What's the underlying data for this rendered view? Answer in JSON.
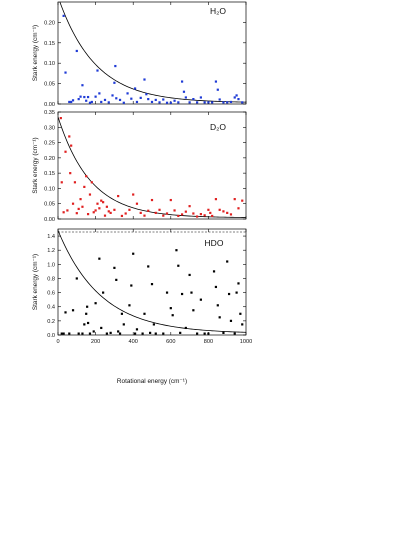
{
  "chart_data": [
    {
      "type": "scatter",
      "label": "H₂O",
      "ylabel": "Stark energy (cm⁻¹)",
      "xlim": [
        0,
        1000
      ],
      "ylim": [
        0,
        0.25
      ],
      "yticks": [
        "0.00",
        "0.05",
        "0.10",
        "0.15",
        "0.20"
      ],
      "color": "#1f3bd6",
      "fit": {
        "a": 0.26,
        "b": 0.0051,
        "offset": 0.003
      },
      "points": [
        [
          30,
          0.216
        ],
        [
          40,
          0.077
        ],
        [
          60,
          0.005
        ],
        [
          70,
          0.005
        ],
        [
          80,
          0.009
        ],
        [
          100,
          0.13
        ],
        [
          110,
          0.012
        ],
        [
          120,
          0.018
        ],
        [
          130,
          0.046
        ],
        [
          140,
          0.017
        ],
        [
          150,
          0.008
        ],
        [
          160,
          0.017
        ],
        [
          170,
          0.003
        ],
        [
          180,
          0.005
        ],
        [
          200,
          0.018
        ],
        [
          210,
          0.082
        ],
        [
          220,
          0.026
        ],
        [
          230,
          0.005
        ],
        [
          250,
          0.01
        ],
        [
          270,
          0.004
        ],
        [
          290,
          0.021
        ],
        [
          300,
          0.052
        ],
        [
          305,
          0.093
        ],
        [
          310,
          0.014
        ],
        [
          330,
          0.01
        ],
        [
          350,
          0.003
        ],
        [
          370,
          0.026
        ],
        [
          390,
          0.013
        ],
        [
          410,
          0.038
        ],
        [
          420,
          0.005
        ],
        [
          440,
          0.015
        ],
        [
          460,
          0.06
        ],
        [
          470,
          0.024
        ],
        [
          480,
          0.012
        ],
        [
          500,
          0.005
        ],
        [
          520,
          0.01
        ],
        [
          540,
          0.004
        ],
        [
          560,
          0.011
        ],
        [
          580,
          0.003
        ],
        [
          600,
          0.003
        ],
        [
          620,
          0.008
        ],
        [
          640,
          0.004
        ],
        [
          660,
          0.055
        ],
        [
          670,
          0.03
        ],
        [
          680,
          0.016
        ],
        [
          700,
          0.004
        ],
        [
          720,
          0.012
        ],
        [
          740,
          0.004
        ],
        [
          760,
          0.016
        ],
        [
          780,
          0.004
        ],
        [
          800,
          0.004
        ],
        [
          820,
          0.004
        ],
        [
          840,
          0.055
        ],
        [
          850,
          0.035
        ],
        [
          860,
          0.011
        ],
        [
          880,
          0.004
        ],
        [
          900,
          0.004
        ],
        [
          920,
          0.005
        ],
        [
          940,
          0.016
        ],
        [
          950,
          0.021
        ],
        [
          960,
          0.012
        ],
        [
          980,
          0.004
        ]
      ]
    },
    {
      "type": "scatter",
      "label": "D₂O",
      "ylabel": "Stark energy (cm⁻¹)",
      "xlim": [
        0,
        1000
      ],
      "ylim": [
        0,
        0.35
      ],
      "yticks": [
        "0.00",
        "0.05",
        "0.10",
        "0.15",
        "0.20",
        "0.25",
        "0.30",
        "0.35"
      ],
      "color": "#e02020",
      "fit": {
        "a": 0.33,
        "b": 0.0058,
        "offset": 0.004
      },
      "points": [
        [
          15,
          0.33
        ],
        [
          20,
          0.12
        ],
        [
          30,
          0.022
        ],
        [
          40,
          0.22
        ],
        [
          50,
          0.028
        ],
        [
          60,
          0.27
        ],
        [
          65,
          0.15
        ],
        [
          70,
          0.24
        ],
        [
          80,
          0.05
        ],
        [
          90,
          0.12
        ],
        [
          100,
          0.019
        ],
        [
          110,
          0.033
        ],
        [
          120,
          0.065
        ],
        [
          130,
          0.04
        ],
        [
          140,
          0.105
        ],
        [
          150,
          0.14
        ],
        [
          160,
          0.016
        ],
        [
          170,
          0.08
        ],
        [
          180,
          0.12
        ],
        [
          190,
          0.022
        ],
        [
          200,
          0.028
        ],
        [
          210,
          0.05
        ],
        [
          220,
          0.035
        ],
        [
          230,
          0.06
        ],
        [
          240,
          0.055
        ],
        [
          250,
          0.011
        ],
        [
          260,
          0.04
        ],
        [
          270,
          0.025
        ],
        [
          280,
          0.02
        ],
        [
          300,
          0.03
        ],
        [
          320,
          0.075
        ],
        [
          340,
          0.01
        ],
        [
          360,
          0.018
        ],
        [
          380,
          0.03
        ],
        [
          400,
          0.08
        ],
        [
          420,
          0.05
        ],
        [
          440,
          0.02
        ],
        [
          460,
          0.011
        ],
        [
          480,
          0.027
        ],
        [
          500,
          0.062
        ],
        [
          520,
          0.02
        ],
        [
          540,
          0.03
        ],
        [
          560,
          0.011
        ],
        [
          580,
          0.018
        ],
        [
          600,
          0.062
        ],
        [
          620,
          0.028
        ],
        [
          640,
          0.01
        ],
        [
          660,
          0.015
        ],
        [
          680,
          0.024
        ],
        [
          700,
          0.042
        ],
        [
          720,
          0.018
        ],
        [
          740,
          0.008
        ],
        [
          760,
          0.016
        ],
        [
          780,
          0.012
        ],
        [
          800,
          0.03
        ],
        [
          810,
          0.02
        ],
        [
          820,
          0.01
        ],
        [
          840,
          0.065
        ],
        [
          860,
          0.03
        ],
        [
          880,
          0.025
        ],
        [
          900,
          0.02
        ],
        [
          920,
          0.015
        ],
        [
          940,
          0.065
        ],
        [
          960,
          0.035
        ],
        [
          980,
          0.06
        ]
      ]
    },
    {
      "type": "scatter",
      "label": "HDO",
      "ylabel": "Stark energy (cm⁻¹)",
      "xlabel": "Rotational energy (cm⁻¹)",
      "xlim": [
        0,
        1000
      ],
      "ylim": [
        0,
        1.5
      ],
      "yticks": [
        "0.0",
        "0.2",
        "0.4",
        "0.6",
        "0.8",
        "1.0",
        "1.2",
        "1.4"
      ],
      "xticks": [
        "0",
        "200",
        "400",
        "600",
        "800",
        "1000"
      ],
      "color": "#000000",
      "fit": {
        "a": 1.46,
        "b": 0.0044,
        "offset": 0.02
      },
      "points": [
        [
          20,
          0.02
        ],
        [
          30,
          0.02
        ],
        [
          40,
          0.32
        ],
        [
          60,
          0.02
        ],
        [
          80,
          0.35
        ],
        [
          100,
          0.8
        ],
        [
          110,
          0.02
        ],
        [
          130,
          0.02
        ],
        [
          140,
          0.15
        ],
        [
          150,
          0.3
        ],
        [
          155,
          0.4
        ],
        [
          160,
          0.17
        ],
        [
          170,
          0.02
        ],
        [
          190,
          0.05
        ],
        [
          200,
          0.45
        ],
        [
          220,
          1.08
        ],
        [
          230,
          0.1
        ],
        [
          240,
          0.6
        ],
        [
          260,
          0.02
        ],
        [
          280,
          0.03
        ],
        [
          300,
          0.95
        ],
        [
          310,
          0.78
        ],
        [
          320,
          0.05
        ],
        [
          330,
          0.02
        ],
        [
          340,
          0.3
        ],
        [
          350,
          0.15
        ],
        [
          380,
          0.42
        ],
        [
          390,
          0.7
        ],
        [
          400,
          1.15
        ],
        [
          410,
          0.02
        ],
        [
          420,
          0.08
        ],
        [
          450,
          0.02
        ],
        [
          460,
          0.3
        ],
        [
          480,
          0.97
        ],
        [
          490,
          0.03
        ],
        [
          500,
          0.72
        ],
        [
          510,
          0.15
        ],
        [
          520,
          0.02
        ],
        [
          560,
          0.02
        ],
        [
          580,
          0.6
        ],
        [
          600,
          0.38
        ],
        [
          610,
          0.28
        ],
        [
          630,
          1.2
        ],
        [
          640,
          0.98
        ],
        [
          650,
          0.03
        ],
        [
          660,
          0.58
        ],
        [
          680,
          0.1
        ],
        [
          700,
          0.85
        ],
        [
          710,
          0.6
        ],
        [
          720,
          0.35
        ],
        [
          740,
          0.02
        ],
        [
          760,
          0.5
        ],
        [
          780,
          0.02
        ],
        [
          800,
          0.02
        ],
        [
          830,
          0.9
        ],
        [
          840,
          0.68
        ],
        [
          850,
          0.42
        ],
        [
          860,
          0.25
        ],
        [
          880,
          0.03
        ],
        [
          900,
          1.04
        ],
        [
          910,
          0.58
        ],
        [
          920,
          0.2
        ],
        [
          940,
          0.02
        ],
        [
          950,
          0.6
        ],
        [
          960,
          0.73
        ],
        [
          970,
          0.3
        ],
        [
          980,
          0.15
        ]
      ]
    }
  ]
}
